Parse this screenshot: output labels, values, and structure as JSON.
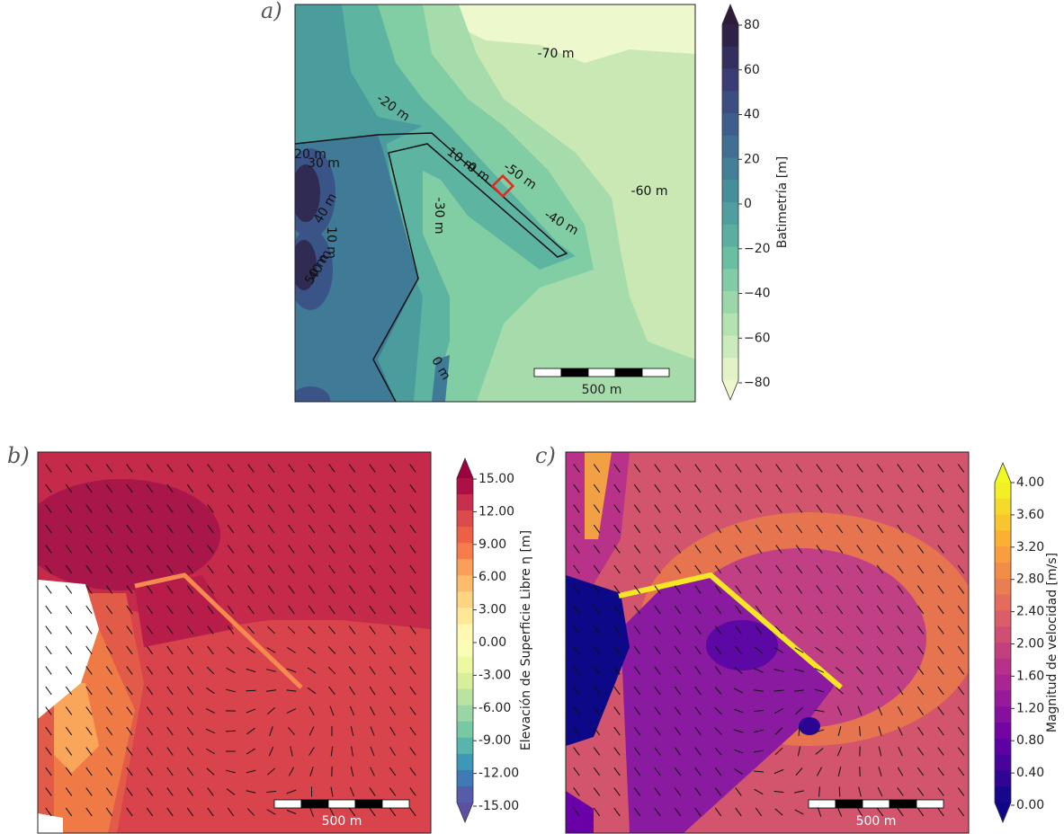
{
  "panels": [
    {
      "label": "a)",
      "contour_labels": [
        "-70 m",
        "-20 m",
        "-60 m",
        "-50 m",
        "-40 m",
        "-30 m",
        "10 m",
        "0 m",
        "20 m",
        "30 m",
        "40 m",
        "10 m",
        "40 m",
        "50 m",
        "0 m"
      ],
      "scale_bar": "500 m",
      "colorbar": {
        "label": "Batimetría [m]",
        "ticks": [
          "80",
          "60",
          "40",
          "20",
          "0",
          "−20",
          "−40",
          "−60",
          "−80"
        ]
      }
    },
    {
      "label": "b)",
      "scale_bar": "500 m",
      "colorbar": {
        "label": "Elevación de Superficie Libre η [m]",
        "ticks": [
          "15.00",
          "12.00",
          "9.00",
          "6.00",
          "3.00",
          "0.00",
          "-3.00",
          "-6.00",
          "-9.00",
          "-12.00",
          "-15.00"
        ]
      }
    },
    {
      "label": "c)",
      "scale_bar": "500 m",
      "colorbar": {
        "label": "Magnitud de velocidad [m/s]",
        "ticks": [
          "4.00",
          "3.60",
          "3.20",
          "2.80",
          "2.40",
          "2.00",
          "1.60",
          "1.20",
          "0.80",
          "0.40",
          "0.00"
        ]
      }
    }
  ]
}
